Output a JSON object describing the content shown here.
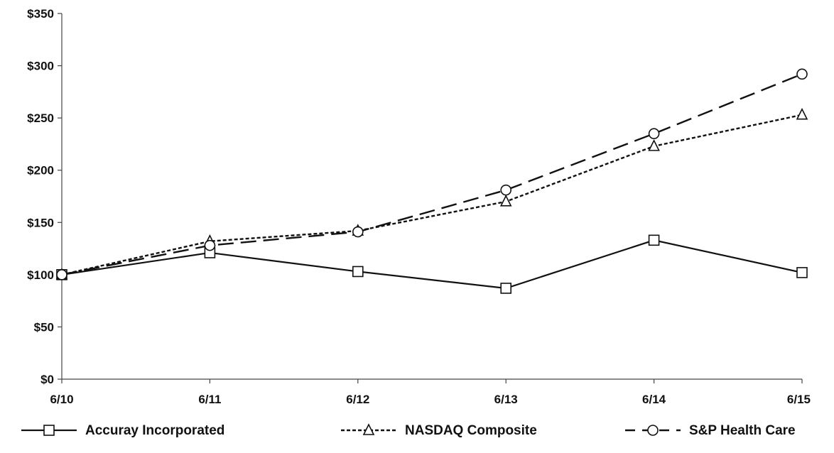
{
  "chart_data": {
    "type": "line",
    "title": "",
    "xlabel": "",
    "ylabel": "",
    "categories": [
      "6/10",
      "6/11",
      "6/12",
      "6/13",
      "6/14",
      "6/15"
    ],
    "ylim": [
      0,
      350
    ],
    "yticks": [
      0,
      50,
      100,
      150,
      200,
      250,
      300,
      350
    ],
    "ytick_labels": [
      "$0",
      "$50",
      "$100",
      "$150",
      "$200",
      "$250",
      "$300",
      "$350"
    ],
    "grid": false,
    "legend_position": "bottom",
    "series": [
      {
        "name": "Accuray Incorporated",
        "values": [
          100,
          121,
          103,
          87,
          133,
          102
        ],
        "line_style": "solid",
        "marker": "square",
        "color": "#111111"
      },
      {
        "name": "NASDAQ Composite",
        "values": [
          100,
          132,
          142,
          170,
          223,
          253
        ],
        "line_style": "dotted",
        "marker": "triangle",
        "color": "#111111"
      },
      {
        "name": "S&P Health Care",
        "values": [
          100,
          128,
          141,
          181,
          235,
          292
        ],
        "line_style": "dashed",
        "marker": "circle",
        "color": "#111111"
      }
    ]
  }
}
